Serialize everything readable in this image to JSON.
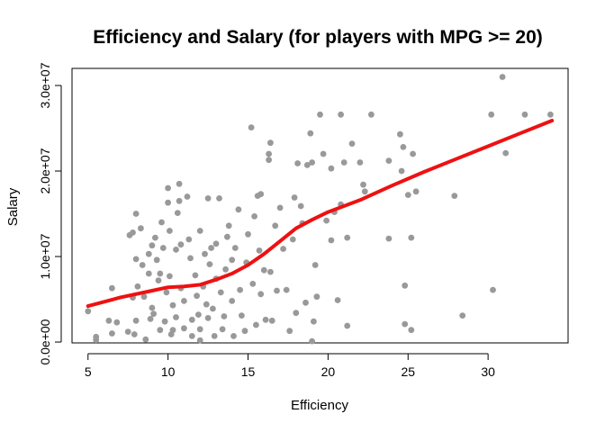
{
  "chart_data": {
    "type": "scatter",
    "title": "Efficiency and Salary (for players with MPG >= 20)",
    "xlabel": "Efficiency",
    "ylabel": "Salary",
    "xlim": [
      4,
      35
    ],
    "ylim": [
      -100000,
      32000000
    ],
    "x_ticks": [
      5,
      10,
      15,
      20,
      25,
      30
    ],
    "x_tick_labels": [
      "5",
      "10",
      "15",
      "20",
      "25",
      "30"
    ],
    "y_ticks": [
      0,
      10000000,
      20000000,
      30000000
    ],
    "y_tick_labels": [
      "0.0e+00",
      "1.0e+07",
      "2.0e+07",
      "3.0e+07"
    ],
    "grid": false,
    "legend": "none",
    "colors": {
      "points": "#999999",
      "trend": "#ee1111",
      "frame": "#000000"
    },
    "points": [
      {
        "x": 5.0,
        "y": 3600000
      },
      {
        "x": 5.5,
        "y": 250000
      },
      {
        "x": 5.5,
        "y": 600000
      },
      {
        "x": 6.3,
        "y": 2500000
      },
      {
        "x": 6.5,
        "y": 6300000
      },
      {
        "x": 6.5,
        "y": 1000000
      },
      {
        "x": 6.8,
        "y": 2300000
      },
      {
        "x": 7.5,
        "y": 1200000
      },
      {
        "x": 7.6,
        "y": 12500000
      },
      {
        "x": 7.8,
        "y": 12800000
      },
      {
        "x": 7.8,
        "y": 5200000
      },
      {
        "x": 7.9,
        "y": 900000
      },
      {
        "x": 8.0,
        "y": 15000000
      },
      {
        "x": 8.0,
        "y": 9700000
      },
      {
        "x": 8.0,
        "y": 2500000
      },
      {
        "x": 8.1,
        "y": 6500000
      },
      {
        "x": 8.3,
        "y": 13300000
      },
      {
        "x": 8.4,
        "y": 9000000
      },
      {
        "x": 8.5,
        "y": 5300000
      },
      {
        "x": 8.6,
        "y": 300000
      },
      {
        "x": 8.8,
        "y": 8000000
      },
      {
        "x": 8.8,
        "y": 10300000
      },
      {
        "x": 8.9,
        "y": 2700000
      },
      {
        "x": 9.0,
        "y": 11300000
      },
      {
        "x": 9.0,
        "y": 4000000
      },
      {
        "x": 9.1,
        "y": 3300000
      },
      {
        "x": 9.2,
        "y": 12200000
      },
      {
        "x": 9.3,
        "y": 9600000
      },
      {
        "x": 9.4,
        "y": 7200000
      },
      {
        "x": 9.5,
        "y": 1400000
      },
      {
        "x": 9.5,
        "y": 8000000
      },
      {
        "x": 9.6,
        "y": 14000000
      },
      {
        "x": 9.7,
        "y": 11000000
      },
      {
        "x": 9.8,
        "y": 2400000
      },
      {
        "x": 9.9,
        "y": 5800000
      },
      {
        "x": 10.0,
        "y": 18000000
      },
      {
        "x": 10.0,
        "y": 16300000
      },
      {
        "x": 10.1,
        "y": 13000000
      },
      {
        "x": 10.1,
        "y": 7700000
      },
      {
        "x": 10.2,
        "y": 900000
      },
      {
        "x": 10.3,
        "y": 4300000
      },
      {
        "x": 10.3,
        "y": 1400000
      },
      {
        "x": 10.5,
        "y": 10800000
      },
      {
        "x": 10.5,
        "y": 2900000
      },
      {
        "x": 10.6,
        "y": 15100000
      },
      {
        "x": 10.7,
        "y": 18500000
      },
      {
        "x": 10.7,
        "y": 16500000
      },
      {
        "x": 10.8,
        "y": 11400000
      },
      {
        "x": 10.8,
        "y": 6300000
      },
      {
        "x": 11.0,
        "y": 4800000
      },
      {
        "x": 11.0,
        "y": 1600000
      },
      {
        "x": 11.2,
        "y": 17000000
      },
      {
        "x": 11.3,
        "y": 12000000
      },
      {
        "x": 11.4,
        "y": 9800000
      },
      {
        "x": 11.5,
        "y": 2600000
      },
      {
        "x": 11.5,
        "y": 700000
      },
      {
        "x": 11.7,
        "y": 7800000
      },
      {
        "x": 11.8,
        "y": 5400000
      },
      {
        "x": 11.9,
        "y": 3200000
      },
      {
        "x": 12.0,
        "y": 13000000
      },
      {
        "x": 12.0,
        "y": 1500000
      },
      {
        "x": 12.0,
        "y": 200000
      },
      {
        "x": 12.2,
        "y": 6500000
      },
      {
        "x": 12.3,
        "y": 10300000
      },
      {
        "x": 12.4,
        "y": 4400000
      },
      {
        "x": 12.5,
        "y": 16800000
      },
      {
        "x": 12.5,
        "y": 2800000
      },
      {
        "x": 12.6,
        "y": 9100000
      },
      {
        "x": 12.7,
        "y": 11000000
      },
      {
        "x": 12.8,
        "y": 3900000
      },
      {
        "x": 12.9,
        "y": 700000
      },
      {
        "x": 13.0,
        "y": 7400000
      },
      {
        "x": 13.0,
        "y": 11500000
      },
      {
        "x": 13.2,
        "y": 16800000
      },
      {
        "x": 13.3,
        "y": 5800000
      },
      {
        "x": 13.4,
        "y": 1500000
      },
      {
        "x": 13.5,
        "y": 3000000
      },
      {
        "x": 13.6,
        "y": 8500000
      },
      {
        "x": 13.7,
        "y": 12300000
      },
      {
        "x": 13.8,
        "y": 13600000
      },
      {
        "x": 14.0,
        "y": 4800000
      },
      {
        "x": 14.0,
        "y": 9600000
      },
      {
        "x": 14.1,
        "y": 700000
      },
      {
        "x": 14.2,
        "y": 11000000
      },
      {
        "x": 14.4,
        "y": 15500000
      },
      {
        "x": 14.5,
        "y": 6100000
      },
      {
        "x": 14.6,
        "y": 3100000
      },
      {
        "x": 14.8,
        "y": 1300000
      },
      {
        "x": 14.9,
        "y": 9300000
      },
      {
        "x": 15.0,
        "y": 12600000
      },
      {
        "x": 15.2,
        "y": 25100000
      },
      {
        "x": 15.3,
        "y": 6800000
      },
      {
        "x": 15.4,
        "y": 14700000
      },
      {
        "x": 15.5,
        "y": 2000000
      },
      {
        "x": 15.6,
        "y": 17100000
      },
      {
        "x": 15.7,
        "y": 10700000
      },
      {
        "x": 15.8,
        "y": 5600000
      },
      {
        "x": 15.8,
        "y": 17300000
      },
      {
        "x": 16.0,
        "y": 8400000
      },
      {
        "x": 16.1,
        "y": 2600000
      },
      {
        "x": 16.3,
        "y": 22000000
      },
      {
        "x": 16.3,
        "y": 21300000
      },
      {
        "x": 16.4,
        "y": 23300000
      },
      {
        "x": 16.4,
        "y": 8200000
      },
      {
        "x": 16.5,
        "y": 2500000
      },
      {
        "x": 16.7,
        "y": 13600000
      },
      {
        "x": 16.8,
        "y": 6000000
      },
      {
        "x": 17.0,
        "y": 15700000
      },
      {
        "x": 17.2,
        "y": 10900000
      },
      {
        "x": 17.4,
        "y": 6100000
      },
      {
        "x": 17.6,
        "y": 1300000
      },
      {
        "x": 17.8,
        "y": 12000000
      },
      {
        "x": 17.9,
        "y": 16900000
      },
      {
        "x": 18.0,
        "y": 3400000
      },
      {
        "x": 18.1,
        "y": 20900000
      },
      {
        "x": 18.3,
        "y": 15900000
      },
      {
        "x": 18.4,
        "y": 13900000
      },
      {
        "x": 18.6,
        "y": 4600000
      },
      {
        "x": 18.7,
        "y": 20700000
      },
      {
        "x": 18.9,
        "y": 24400000
      },
      {
        "x": 19.0,
        "y": 21000000
      },
      {
        "x": 19.0,
        "y": 100000
      },
      {
        "x": 19.1,
        "y": 2400000
      },
      {
        "x": 19.2,
        "y": 9000000
      },
      {
        "x": 19.3,
        "y": 5300000
      },
      {
        "x": 19.5,
        "y": 26600000
      },
      {
        "x": 19.7,
        "y": 22000000
      },
      {
        "x": 19.9,
        "y": 14200000
      },
      {
        "x": 20.2,
        "y": 20300000
      },
      {
        "x": 20.2,
        "y": 11900000
      },
      {
        "x": 20.4,
        "y": 15200000
      },
      {
        "x": 20.6,
        "y": 4900000
      },
      {
        "x": 20.8,
        "y": 16100000
      },
      {
        "x": 20.8,
        "y": 26600000
      },
      {
        "x": 21.0,
        "y": 21000000
      },
      {
        "x": 21.2,
        "y": 12200000
      },
      {
        "x": 21.2,
        "y": 1900000
      },
      {
        "x": 21.5,
        "y": 23200000
      },
      {
        "x": 22.0,
        "y": 21000000
      },
      {
        "x": 22.2,
        "y": 18400000
      },
      {
        "x": 22.3,
        "y": 17600000
      },
      {
        "x": 22.7,
        "y": 26600000
      },
      {
        "x": 23.8,
        "y": 21200000
      },
      {
        "x": 23.8,
        "y": 12100000
      },
      {
        "x": 24.5,
        "y": 24300000
      },
      {
        "x": 24.6,
        "y": 20000000
      },
      {
        "x": 24.7,
        "y": 22800000
      },
      {
        "x": 24.8,
        "y": 6600000
      },
      {
        "x": 24.8,
        "y": 2100000
      },
      {
        "x": 25.0,
        "y": 17200000
      },
      {
        "x": 25.2,
        "y": 12200000
      },
      {
        "x": 25.2,
        "y": 1400000
      },
      {
        "x": 25.3,
        "y": 22000000
      },
      {
        "x": 25.5,
        "y": 17600000
      },
      {
        "x": 27.9,
        "y": 17100000
      },
      {
        "x": 28.4,
        "y": 3100000
      },
      {
        "x": 30.2,
        "y": 26600000
      },
      {
        "x": 30.3,
        "y": 6100000
      },
      {
        "x": 30.9,
        "y": 31000000
      },
      {
        "x": 31.1,
        "y": 22100000
      },
      {
        "x": 32.3,
        "y": 26600000
      },
      {
        "x": 33.9,
        "y": 26600000
      }
    ],
    "trend": {
      "name": "",
      "x": [
        5,
        7,
        9,
        10,
        11,
        12,
        13,
        14,
        15,
        16,
        17,
        18,
        19,
        20,
        22,
        24,
        26,
        28,
        30,
        32,
        34
      ],
      "y": [
        4200000,
        5200000,
        6000000,
        6400000,
        6500000,
        6700000,
        7300000,
        8000000,
        9000000,
        10300000,
        11800000,
        13300000,
        14300000,
        15200000,
        16600000,
        18300000,
        19900000,
        21400000,
        22900000,
        24400000,
        25900000
      ]
    }
  }
}
